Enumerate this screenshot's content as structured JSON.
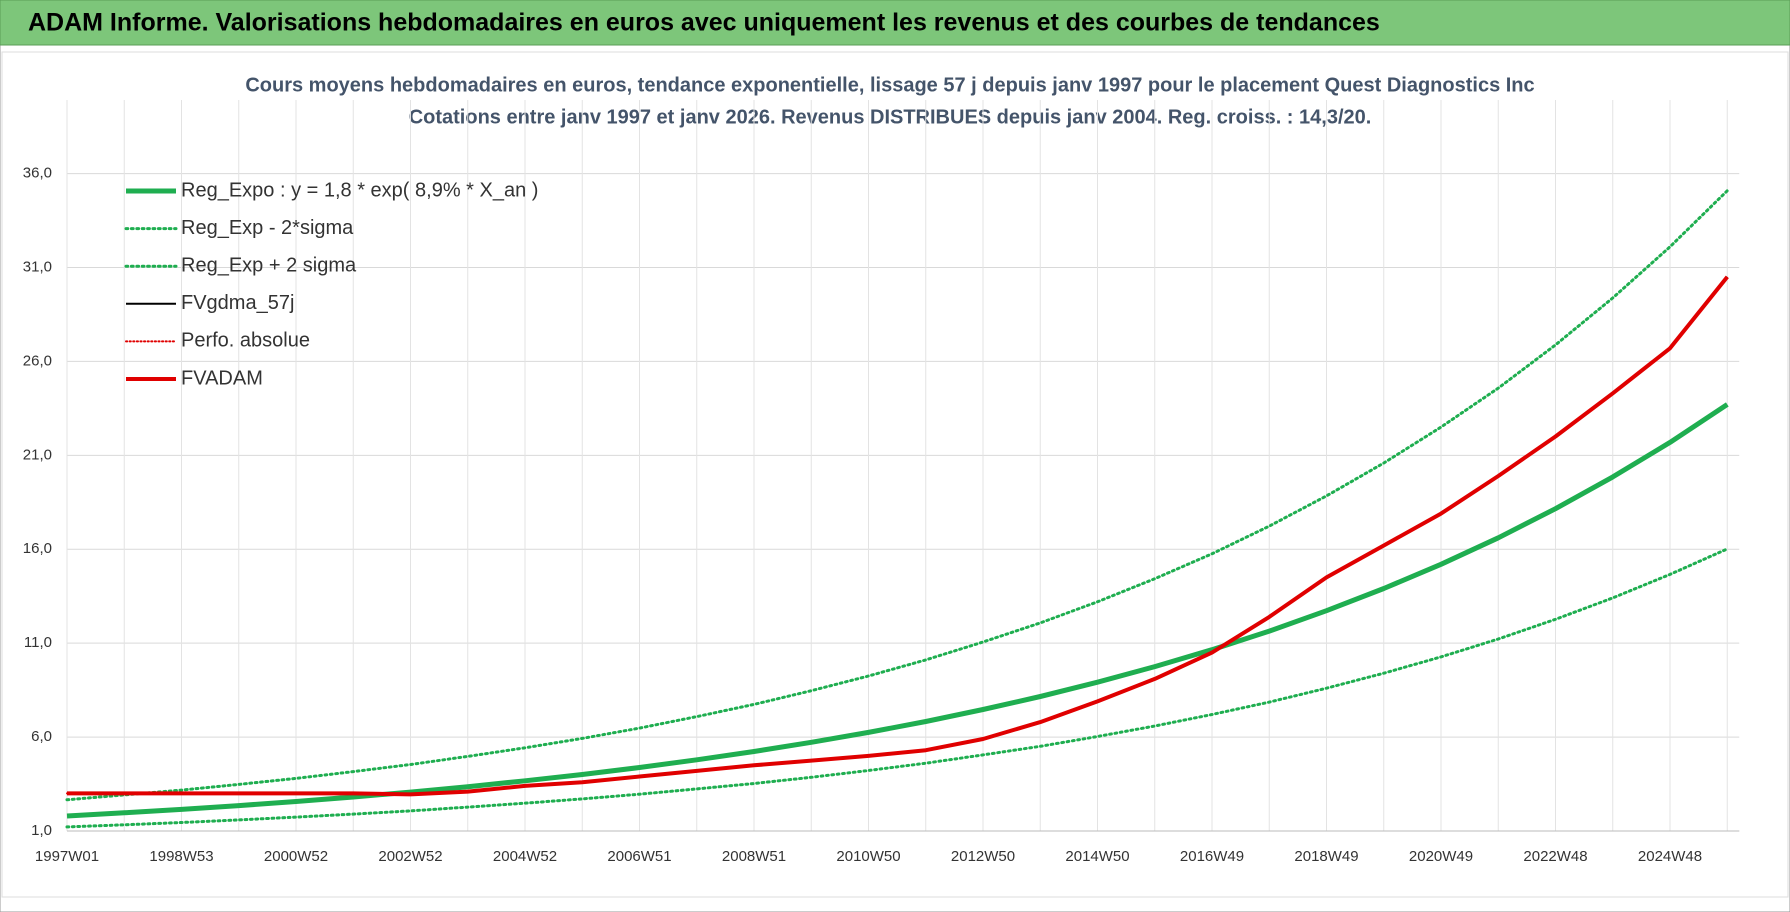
{
  "header": {
    "title": "ADAM Informe. Valorisations hebdomadaires en euros avec uniquement les revenus et des courbes de tendances"
  },
  "chart_data": {
    "type": "line",
    "title": "Cours moyens hebdomadaires en euros, tendance exponentielle, lissage 57 j depuis janv 1997 pour le placement Quest Diagnostics Inc",
    "subtitle": "Cotations entre janv 1997 et janv 2026. Revenus DISTRIBUES depuis janv 2004. Reg. croiss. : 14,3/20.",
    "categories": [
      "1997W01",
      null,
      "1998W53",
      null,
      "2000W52",
      null,
      "2002W52",
      null,
      "2004W52",
      null,
      "2006W51",
      null,
      "2008W51",
      null,
      "2010W50",
      null,
      "2012W50",
      null,
      "2014W50",
      null,
      "2016W49",
      null,
      "2018W49",
      null,
      "2020W49",
      null,
      "2022W48",
      null,
      "2024W48",
      null
    ],
    "ylim": [
      1,
      38
    ],
    "yticks": [
      {
        "value": 1,
        "label": "1,0"
      },
      {
        "value": 6,
        "label": "6,0"
      },
      {
        "value": 11,
        "label": "11,0"
      },
      {
        "value": 16,
        "label": "16,0"
      },
      {
        "value": 21,
        "label": "21,0"
      },
      {
        "value": 26,
        "label": "26,0"
      },
      {
        "value": 31,
        "label": "31,0"
      },
      {
        "value": 36,
        "label": "36,0"
      }
    ],
    "grid": true,
    "legend": "top-left",
    "series": [
      {
        "name": "Reg_Expo : y = 1,8 * exp( 8,9% *  X_an )",
        "color": "#1fae50",
        "style": "solid",
        "width": 5,
        "values": [
          1.8,
          1.97,
          2.15,
          2.35,
          2.57,
          2.81,
          3.07,
          3.36,
          3.67,
          4.01,
          4.38,
          4.79,
          5.23,
          5.72,
          6.25,
          6.83,
          7.47,
          8.16,
          8.92,
          9.75,
          10.65,
          11.64,
          12.73,
          13.91,
          15.2,
          16.61,
          18.16,
          19.85,
          21.69,
          23.71
        ]
      },
      {
        "name": "Reg_Exp - 2*sigma",
        "color": "#1fae50",
        "style": "dotted",
        "width": 3,
        "values": [
          1.22,
          1.33,
          1.45,
          1.59,
          1.74,
          1.9,
          2.07,
          2.27,
          2.48,
          2.71,
          2.96,
          3.24,
          3.53,
          3.86,
          4.22,
          4.61,
          5.05,
          5.51,
          6.03,
          6.59,
          7.2,
          7.86,
          8.6,
          9.4,
          10.27,
          11.22,
          12.27,
          13.41,
          14.66,
          16.02
        ]
      },
      {
        "name": "Reg_Exp + 2 sigma",
        "color": "#1fae50",
        "style": "dotted",
        "width": 3,
        "values": [
          2.66,
          2.92,
          3.18,
          3.48,
          3.8,
          4.16,
          4.54,
          4.97,
          5.43,
          5.93,
          6.48,
          7.09,
          7.74,
          8.47,
          9.25,
          10.11,
          11.06,
          12.08,
          13.2,
          14.43,
          15.76,
          17.23,
          18.84,
          20.59,
          22.5,
          24.58,
          26.88,
          29.38,
          32.1,
          35.09
        ]
      },
      {
        "name": "FVgdma_57j",
        "color": "#000000",
        "style": "solid",
        "width": 2,
        "values": [
          3.0,
          3.0,
          3.0,
          3.0,
          3.0,
          3.0,
          2.95,
          3.1,
          3.4,
          3.6,
          3.9,
          4.2,
          4.5,
          4.75,
          5.0,
          5.3,
          5.9,
          6.8,
          7.9,
          9.1,
          10.5,
          12.4,
          14.5,
          16.2,
          17.9,
          19.9,
          22.0,
          24.3,
          26.7,
          30.5
        ]
      },
      {
        "name": "Perfo. absolue",
        "color": "#e00000",
        "style": "dotted",
        "width": 2,
        "values": [
          3.0,
          3.0,
          3.0,
          3.0,
          3.0,
          3.0,
          2.95,
          3.1,
          3.4,
          3.6,
          3.9,
          4.2,
          4.5,
          4.75,
          5.0,
          5.3,
          5.9,
          6.8,
          7.9,
          9.1,
          10.5,
          12.4,
          14.5,
          16.2,
          17.9,
          19.9,
          22.0,
          24.3,
          26.7,
          30.5
        ]
      },
      {
        "name": "FVADAM",
        "color": "#e00000",
        "style": "solid",
        "width": 4,
        "values": [
          3.0,
          3.0,
          3.0,
          3.0,
          3.0,
          3.0,
          2.95,
          3.1,
          3.4,
          3.6,
          3.9,
          4.2,
          4.5,
          4.75,
          5.0,
          5.3,
          5.9,
          6.8,
          7.9,
          9.1,
          10.5,
          12.4,
          14.5,
          16.2,
          17.9,
          19.9,
          22.0,
          24.3,
          26.7,
          30.5
        ]
      }
    ]
  }
}
